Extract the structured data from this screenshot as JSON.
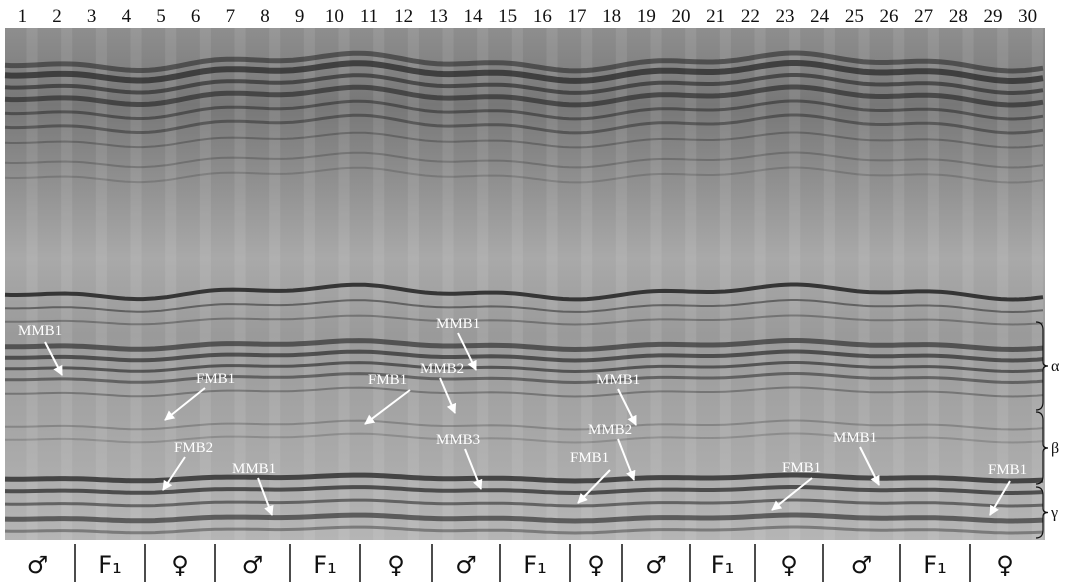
{
  "lanes": [
    "1",
    "2",
    "3",
    "4",
    "5",
    "6",
    "7",
    "8",
    "9",
    "10",
    "11",
    "12",
    "13",
    "14",
    "15",
    "16",
    "17",
    "18",
    "19",
    "20",
    "21",
    "22",
    "23",
    "24",
    "25",
    "26",
    "27",
    "28",
    "29",
    "30"
  ],
  "annotations": [
    "MMB1",
    "FMB1",
    "FMB2",
    "MMB1",
    "FMB1",
    "MMB1",
    "MMB2",
    "MMB3",
    "MMB1",
    "MMB2",
    "FMB1",
    "FMB1",
    "MMB1",
    "FMB1"
  ],
  "groups": [
    "♂",
    "F₁",
    "♀",
    "♂",
    "F₁",
    "♀",
    "♂",
    "F₁",
    "♀",
    "♂",
    "F₁",
    "♀",
    "♂",
    "F₁",
    "♀"
  ],
  "regions": [
    "α",
    "β",
    "γ"
  ]
}
